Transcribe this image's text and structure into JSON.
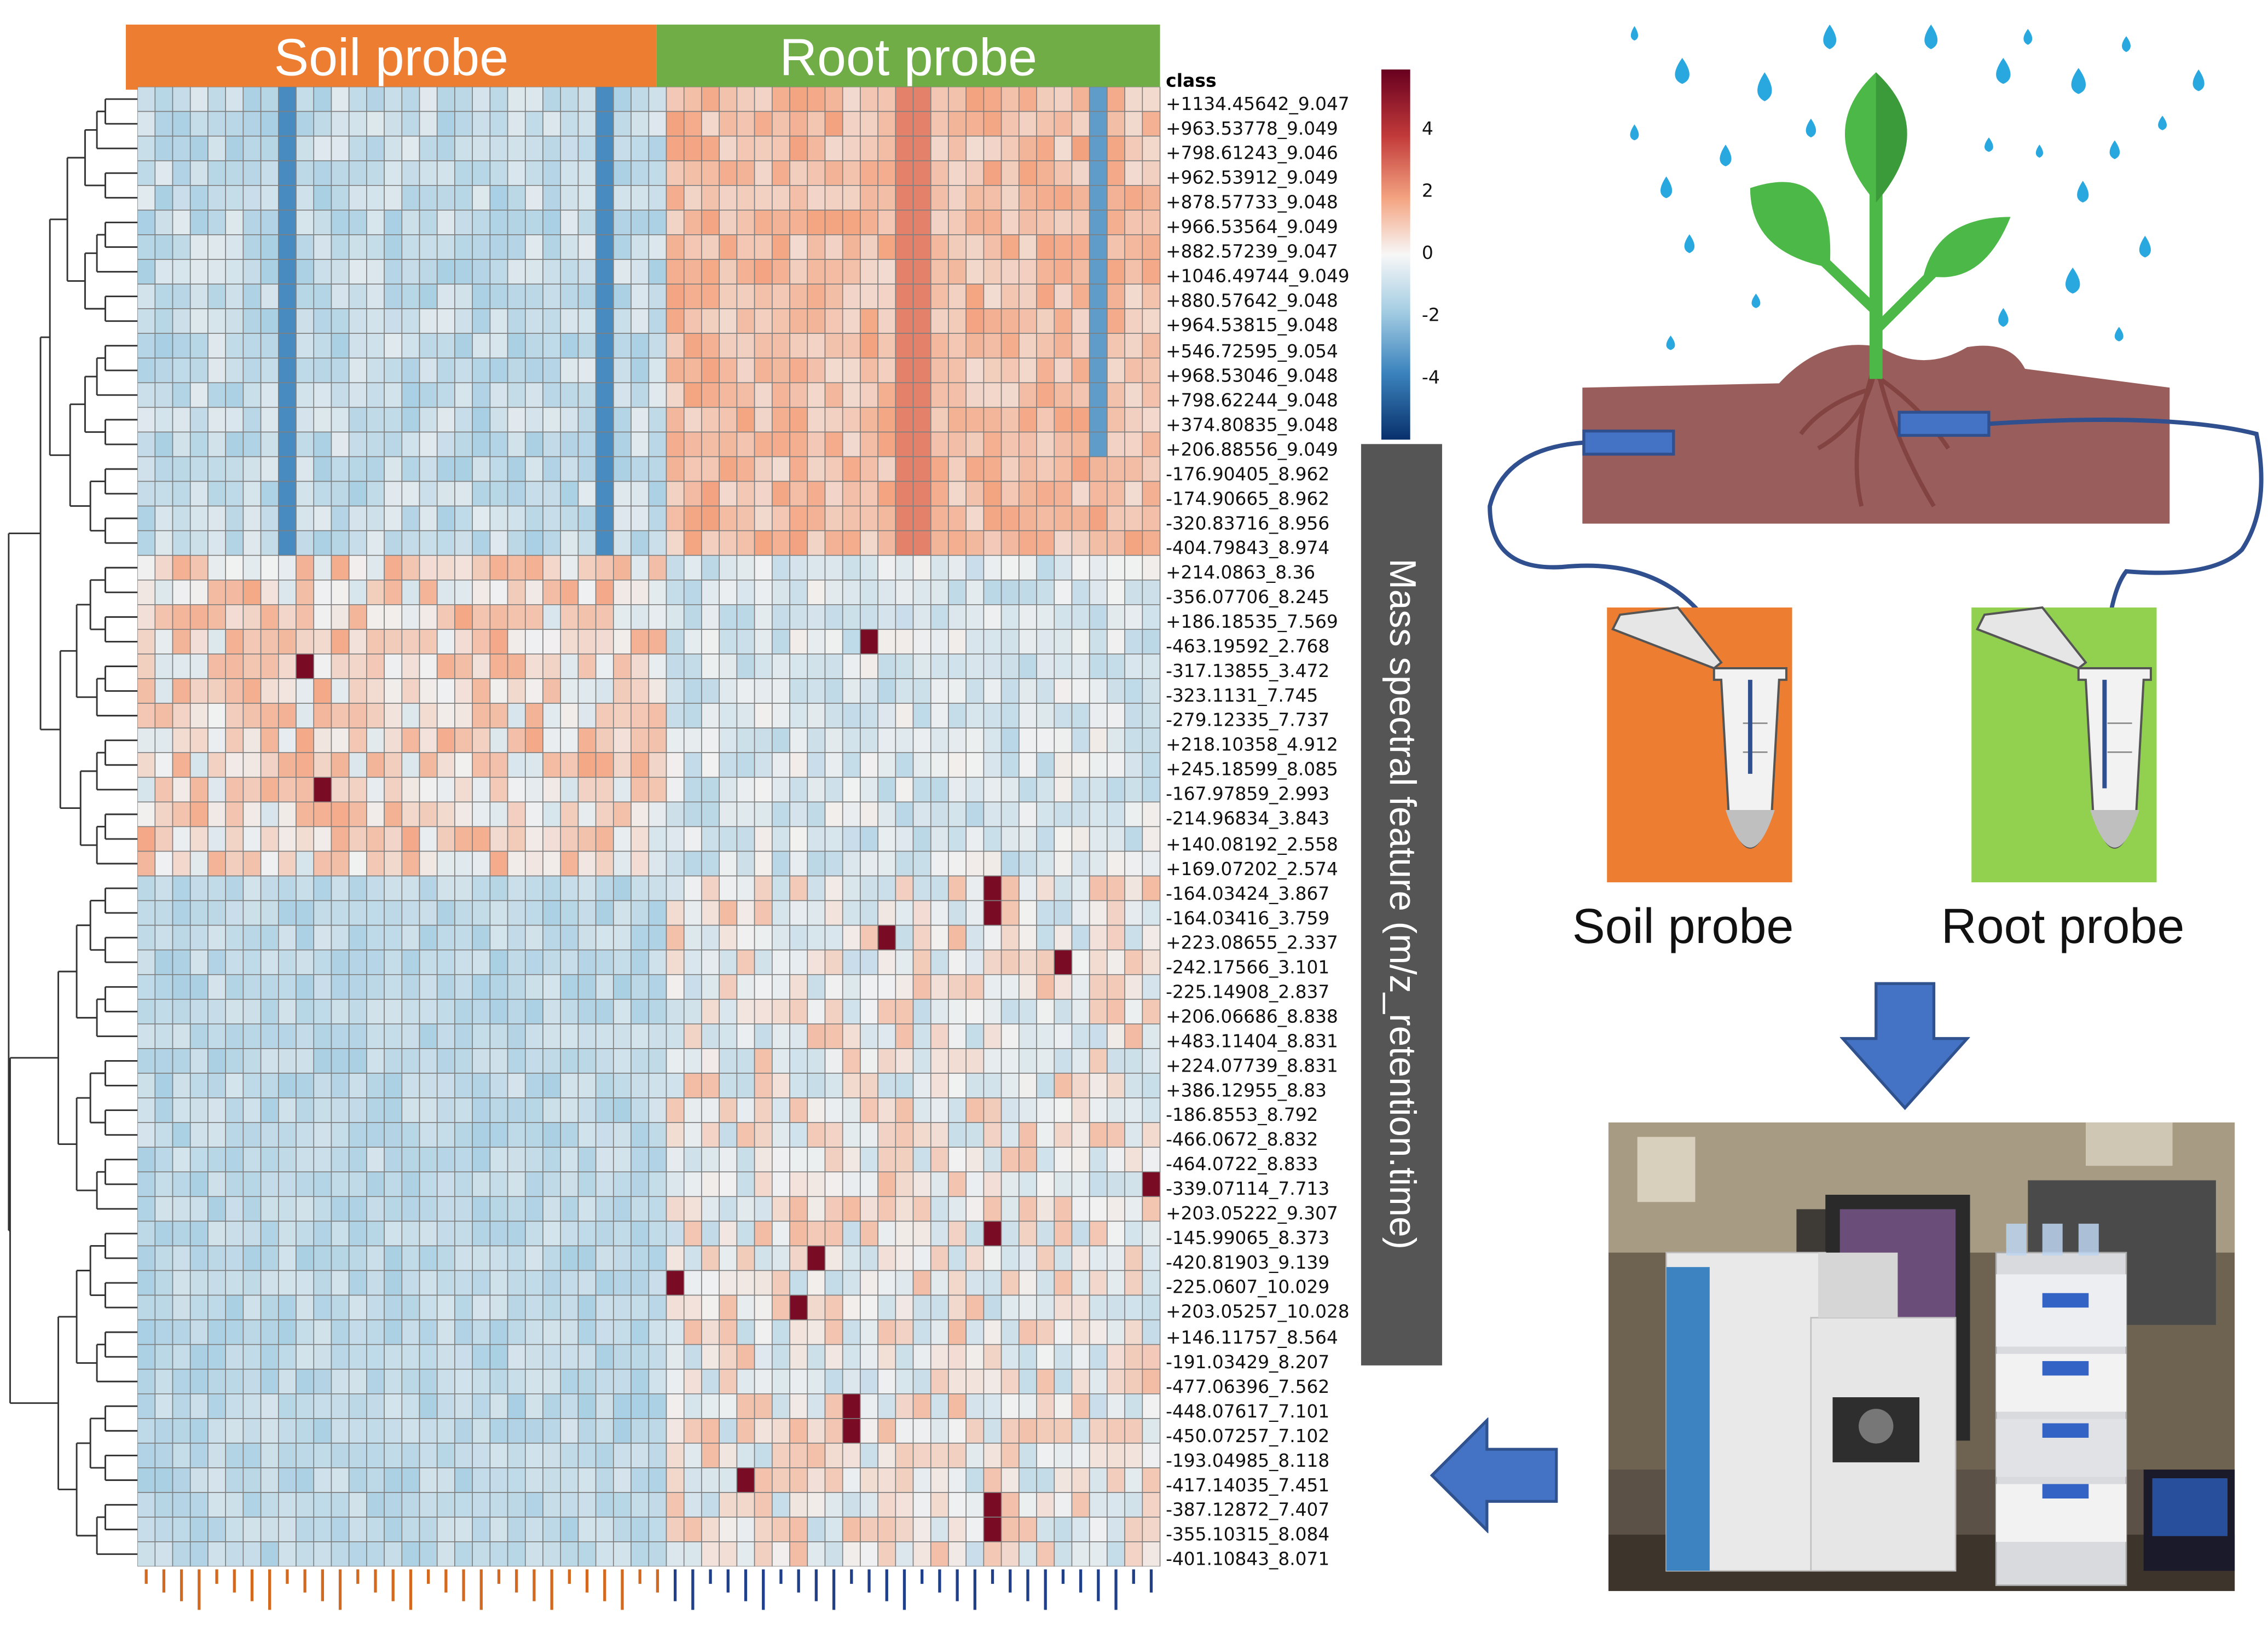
{
  "group_bar": {
    "soil_label": "Soil probe",
    "root_label": "Root probe",
    "soil_color": "#ed7d31",
    "root_color": "#70ad47"
  },
  "heatmap": {
    "class_label": "class",
    "color_scale_ticks": [
      "4",
      "2",
      "0",
      "-2",
      "-4"
    ],
    "palette": {
      "low": "#2c6fa6",
      "mid": "#f1f1f1",
      "high": "#b01227"
    },
    "row_labels": [
      "+1134.45642_9.047",
      "+963.53778_9.049",
      "+798.61243_9.046",
      "+962.53912_9.049",
      "+878.57733_9.048",
      "+966.53564_9.049",
      "+882.57239_9.047",
      "+1046.49744_9.049",
      "+880.57642_9.048",
      "+964.53815_9.048",
      "+546.72595_9.054",
      "+968.53046_9.048",
      "+798.62244_9.048",
      "+374.80835_9.048",
      "+206.88556_9.049",
      "-176.90405_8.962",
      "-174.90665_8.962",
      "-320.83716_8.956",
      "-404.79843_8.974",
      "+214.0863_8.36",
      "-356.07706_8.245",
      "+186.18535_7.569",
      "-463.19592_2.768",
      "-317.13855_3.472",
      "-323.1131_7.745",
      "-279.12335_7.737",
      "+218.10358_4.912",
      "+245.18599_8.085",
      "-167.97859_2.993",
      "-214.96834_3.843",
      "+140.08192_2.558",
      "+169.07202_2.574",
      "-164.03424_3.867",
      "-164.03416_3.759",
      "+223.08655_2.337",
      "-242.17566_3.101",
      "-225.14908_2.837",
      "+206.06686_8.838",
      "+483.11404_8.831",
      "+224.07739_8.831",
      "+386.12955_8.83",
      "-186.8553_8.792",
      "-466.0672_8.832",
      "-464.0722_8.833",
      "-339.07114_7.713",
      "+203.05222_9.307",
      "-145.99065_8.373",
      "-420.81903_9.139",
      "-225.0607_10.029",
      "+203.05257_10.028",
      "+146.11757_8.564",
      "-191.03429_8.207",
      "-477.06396_7.562",
      "-448.07617_7.101",
      "-450.07257_7.102",
      "-193.04985_8.118",
      "-417.14035_7.451",
      "-387.12872_7.407",
      "-355.10315_8.084",
      "-401.10843_8.071"
    ]
  },
  "y_axis_label": "Mass spectral feature (m/z_retention.time)",
  "illustration": {
    "soil_probe_caption": "Soil probe",
    "root_probe_caption": "Root probe",
    "droplet_color": "#29a8e0",
    "soil_color": "#8b4845",
    "leaf_color": "#4cb848",
    "arrow_color": "#4472c4"
  }
}
